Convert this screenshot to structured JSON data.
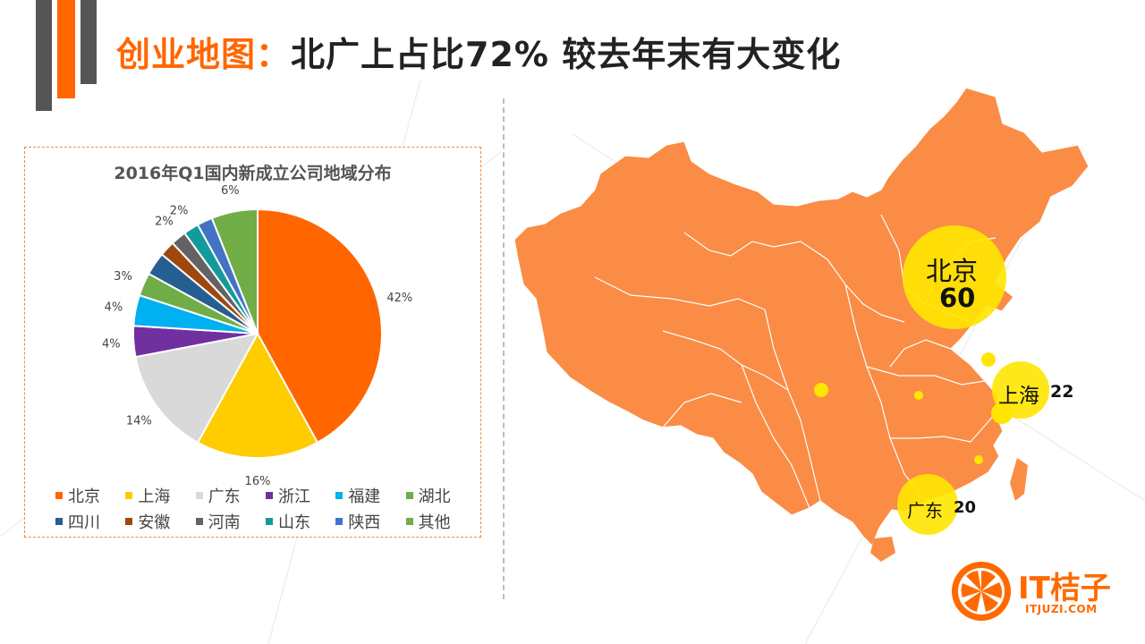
{
  "title": {
    "accent": "创业地图：",
    "main": "北广上占比72%  较去年末有大变化"
  },
  "colors": {
    "accent": "#ff6600",
    "map_fill": "#fa8c45",
    "bubble": "#ffe600"
  },
  "chart_data": {
    "type": "pie",
    "title": "2016年Q1国内新成立公司地域分布",
    "legend_position": "bottom",
    "slices": [
      {
        "name": "北京",
        "value": 42,
        "label": "42%",
        "color": "#ff6600"
      },
      {
        "name": "上海",
        "value": 16,
        "label": "16%",
        "color": "#ffcc00"
      },
      {
        "name": "广东",
        "value": 14,
        "label": "14%",
        "color": "#d9d9d9"
      },
      {
        "name": "浙江",
        "value": 4,
        "label": "4%",
        "color": "#7030a0"
      },
      {
        "name": "福建",
        "value": 4,
        "label": "4%",
        "color": "#00b0f0"
      },
      {
        "name": "湖北",
        "value": 3,
        "label": "3%",
        "color": "#70ad47"
      },
      {
        "name": "四川",
        "value": 3,
        "label": "",
        "color": "#255e91"
      },
      {
        "name": "安徽",
        "value": 2,
        "label": "",
        "color": "#9e480e"
      },
      {
        "name": "河南",
        "value": 2,
        "label": "2%",
        "color": "#636363"
      },
      {
        "name": "山东",
        "value": 2,
        "label": "2%",
        "color": "#159a9c"
      },
      {
        "name": "陕西",
        "value": 2,
        "label": "",
        "color": "#4472c4"
      },
      {
        "name": "其他",
        "value": 6,
        "label": "6%",
        "color": "#70ad47"
      }
    ]
  },
  "map": {
    "bubbles": [
      {
        "name": "北京",
        "value": "60"
      },
      {
        "name": "上海",
        "value": "22"
      },
      {
        "name": "广东",
        "value": "20"
      }
    ]
  },
  "logo": {
    "name": "IT桔子",
    "url": "ITJUZI.COM"
  }
}
